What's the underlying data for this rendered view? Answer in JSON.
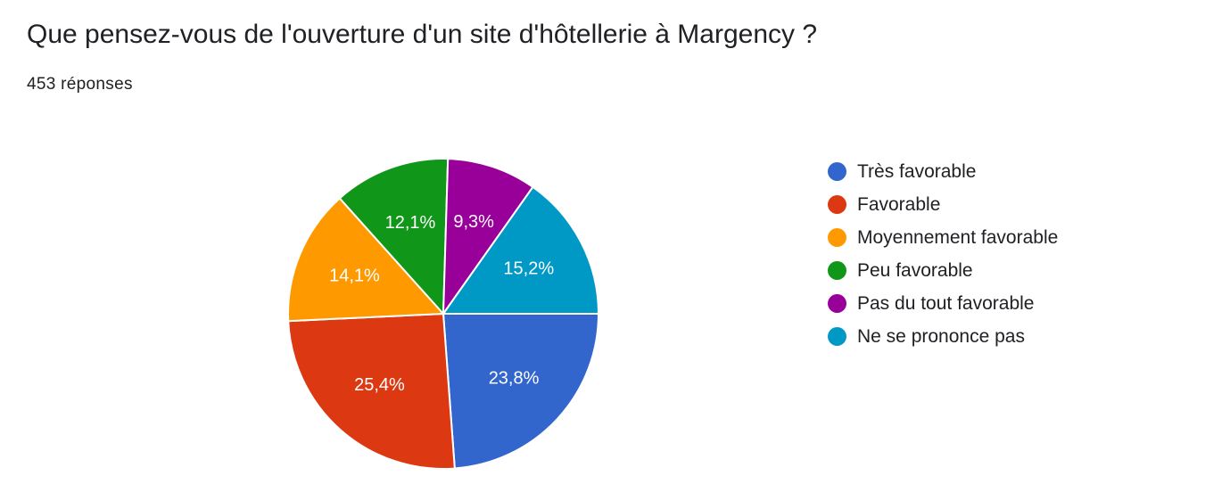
{
  "header": {
    "title": "Que pensez-vous de l'ouverture d'un site d'hôtellerie à Margency ?",
    "responses": "453 réponses"
  },
  "chart_data": {
    "type": "pie",
    "categories": [
      "Très favorable",
      "Favorable",
      "Moyennement favorable",
      "Peu favorable",
      "Pas du tout favorable",
      "Ne se prononce pas"
    ],
    "values": [
      23.8,
      25.4,
      14.1,
      12.1,
      9.3,
      15.2
    ],
    "labels": [
      "23,8%",
      "25,4%",
      "14,1%",
      "12,1%",
      "9,3%",
      "15,2%"
    ],
    "colors": [
      "#3366cc",
      "#dc3912",
      "#ff9900",
      "#109618",
      "#990099",
      "#0099c6"
    ],
    "legend_position": "right"
  }
}
